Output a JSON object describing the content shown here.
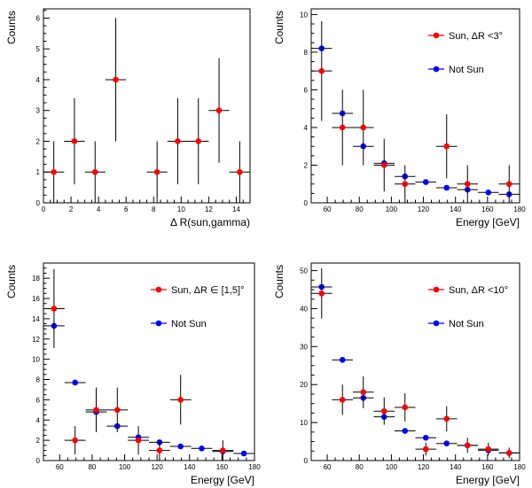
{
  "chart_data": [
    {
      "type": "scatter",
      "title": "",
      "xlabel": "Δ R(sun,gamma)",
      "ylabel": "Counts",
      "xlim": [
        0,
        15
      ],
      "ylim": [
        0,
        6.3
      ],
      "xticks": [
        0,
        2,
        4,
        6,
        8,
        10,
        12,
        14
      ],
      "yticks": [
        0,
        1,
        2,
        3,
        4,
        5,
        6
      ],
      "legend": null,
      "grid": false,
      "series": [
        {
          "color": "#ff0000",
          "x": [
            0.75,
            2.25,
            3.75,
            5.25,
            8.25,
            9.75,
            11.25,
            12.75,
            14.25
          ],
          "y": [
            1,
            2,
            1,
            4,
            1,
            2,
            2,
            3,
            1
          ],
          "xerr": 0.75,
          "yerr_low": [
            1,
            1.4,
            1,
            2,
            1,
            1.4,
            1.4,
            1.7,
            1
          ],
          "yerr_high": [
            1,
            1.4,
            1,
            2,
            1,
            1.4,
            1.4,
            1.7,
            1
          ]
        }
      ]
    },
    {
      "type": "scatter",
      "title": "",
      "xlabel": "Energy [GeV]",
      "ylabel": "Counts",
      "xlim": [
        50,
        180
      ],
      "ylim": [
        0,
        10.3
      ],
      "xticks": [
        60,
        80,
        100,
        120,
        140,
        160,
        180
      ],
      "yticks": [
        0,
        2,
        4,
        6,
        8,
        10
      ],
      "legend": "top-right",
      "grid": false,
      "series": [
        {
          "name": "Sun, ΔR <3°",
          "color": "#ff0000",
          "x": [
            56.5,
            69.5,
            82.5,
            95.5,
            108.5,
            134.5,
            147.5,
            173.5
          ],
          "y": [
            7,
            4,
            4,
            2,
            1,
            3,
            1,
            1
          ],
          "xerr": 6.5,
          "yerr_low": [
            2.65,
            2,
            2,
            1.4,
            1,
            1.7,
            1,
            1
          ],
          "yerr_high": [
            2.65,
            2,
            2,
            1.4,
            1,
            1.7,
            1,
            1
          ]
        },
        {
          "name": "Not Sun",
          "color": "#0000ff",
          "x": [
            56.5,
            69.5,
            82.5,
            95.5,
            108.5,
            121.5,
            134.5,
            147.5,
            160.5,
            173.5
          ],
          "y": [
            8.2,
            4.75,
            3.0,
            2.1,
            1.4,
            1.1,
            0.8,
            0.7,
            0.55,
            0.45
          ],
          "xerr": 6.5
        }
      ]
    },
    {
      "type": "scatter",
      "title": "",
      "xlabel": "Energy [GeV]",
      "ylabel": "Counts",
      "xlim": [
        50,
        180
      ],
      "ylim": [
        0,
        19.5
      ],
      "xticks": [
        60,
        80,
        100,
        120,
        140,
        160,
        180
      ],
      "yticks": [
        0,
        2,
        4,
        6,
        8,
        10,
        12,
        14,
        16,
        18
      ],
      "legend": "top-right",
      "grid": false,
      "series": [
        {
          "name": "Sun, ΔR ∈ [1,5]°",
          "color": "#ff0000",
          "x": [
            56.5,
            69.5,
            82.5,
            95.5,
            108.5,
            121.5,
            134.5,
            160.5
          ],
          "y": [
            15,
            2,
            5,
            5,
            2,
            1,
            6,
            1
          ],
          "xerr": 6.5,
          "yerr_low": [
            3.9,
            1.4,
            2.2,
            2.2,
            1.4,
            1,
            2.45,
            1
          ],
          "yerr_high": [
            3.9,
            1.4,
            2.2,
            2.2,
            1.4,
            1,
            2.45,
            1
          ]
        },
        {
          "name": "Not Sun",
          "color": "#0000ff",
          "x": [
            56.5,
            69.5,
            82.5,
            95.5,
            108.5,
            121.5,
            134.5,
            147.5,
            160.5,
            173.5
          ],
          "y": [
            13.3,
            7.7,
            4.8,
            3.4,
            2.3,
            1.8,
            1.4,
            1.2,
            0.9,
            0.7
          ],
          "xerr": 6.5
        }
      ]
    },
    {
      "type": "scatter",
      "title": "",
      "xlabel": "Energy [GeV]",
      "ylabel": "Counts",
      "xlim": [
        50,
        180
      ],
      "ylim": [
        0,
        52
      ],
      "xticks": [
        60,
        80,
        100,
        120,
        140,
        160,
        180
      ],
      "yticks": [
        0,
        10,
        20,
        30,
        40,
        50
      ],
      "legend": "top-right",
      "grid": false,
      "series": [
        {
          "name": "Sun, ΔR <10°",
          "color": "#ff0000",
          "x": [
            56.5,
            69.5,
            82.5,
            95.5,
            108.5,
            121.5,
            134.5,
            147.5,
            160.5,
            173.5
          ],
          "y": [
            44,
            16,
            18,
            13,
            14,
            3,
            11,
            4,
            3,
            2
          ],
          "xerr": 6.5,
          "yerr_low": [
            6.6,
            4,
            4.2,
            3.6,
            3.7,
            1.7,
            3.3,
            2,
            1.7,
            1.4
          ],
          "yerr_high": [
            6.6,
            4,
            4.2,
            3.6,
            3.7,
            1.7,
            3.3,
            2,
            1.7,
            1.4
          ]
        },
        {
          "name": "Not Sun",
          "color": "#0000ff",
          "x": [
            56.5,
            69.5,
            82.5,
            95.5,
            108.5,
            121.5,
            134.5,
            147.5,
            160.5,
            173.5
          ],
          "y": [
            45.7,
            26.5,
            16.5,
            11.5,
            7.8,
            6.0,
            4.5,
            4.0,
            2.7,
            2.0
          ],
          "xerr": 6.5
        }
      ]
    }
  ]
}
